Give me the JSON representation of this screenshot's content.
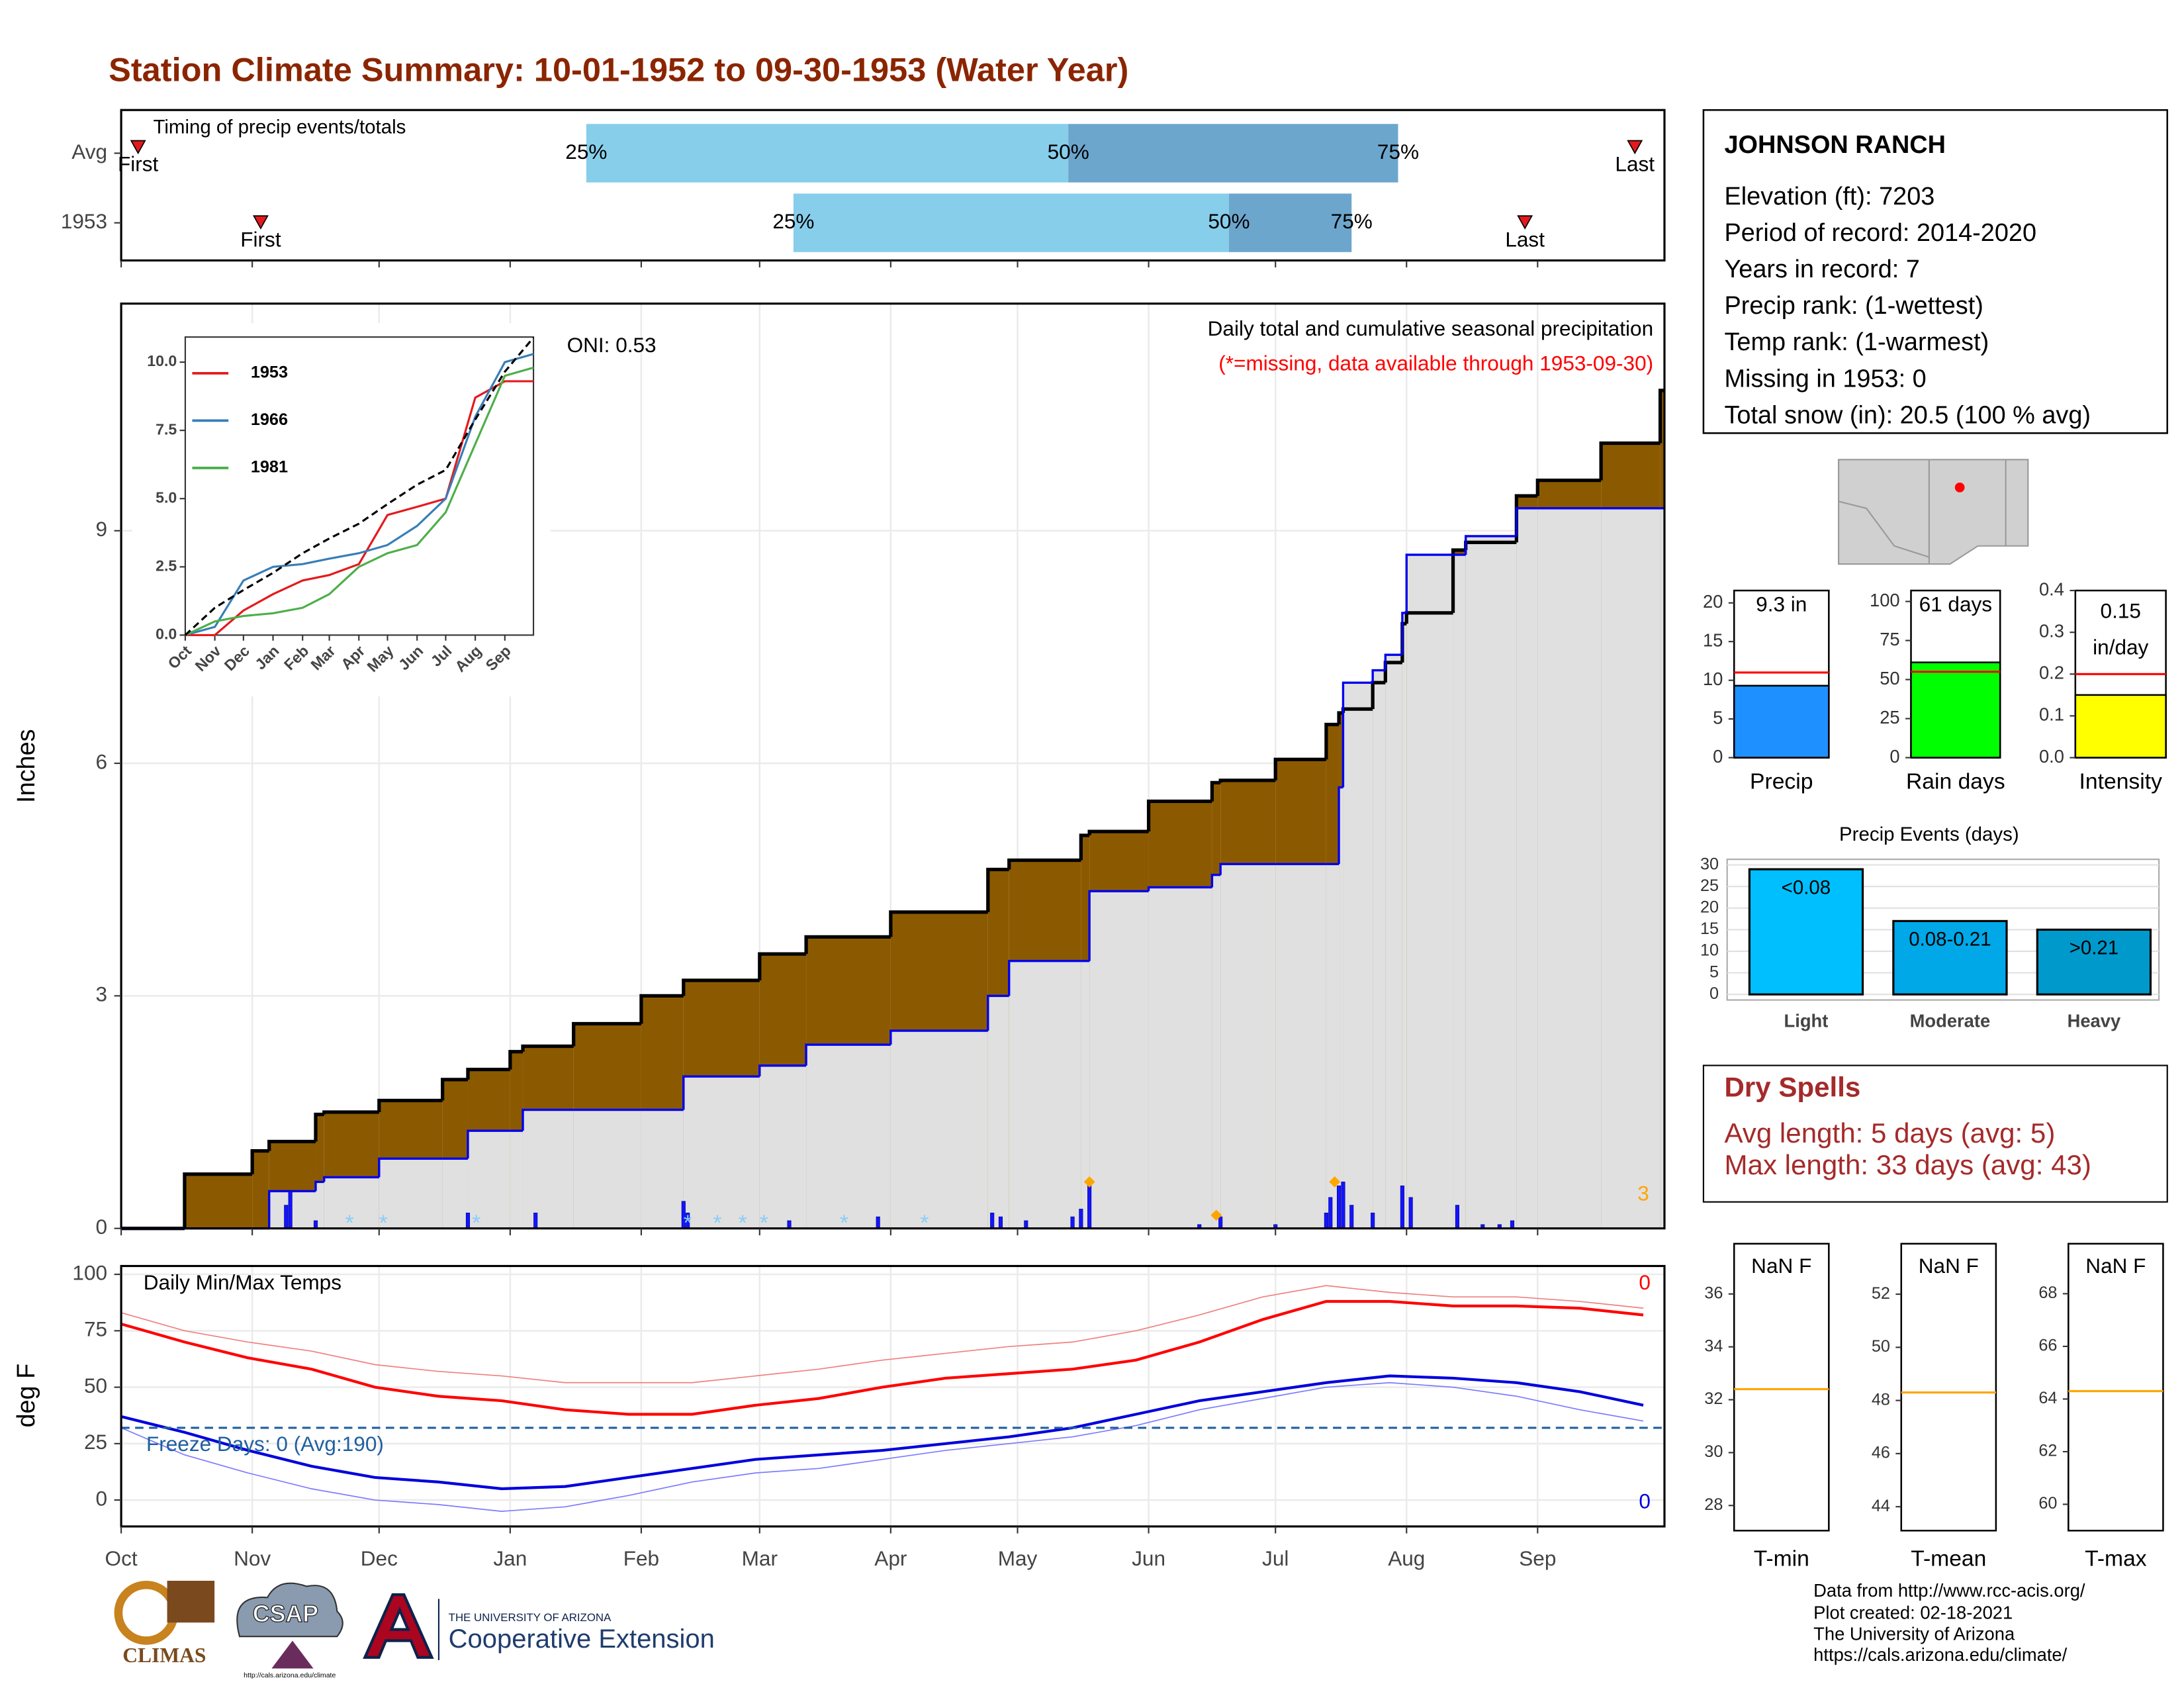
{
  "title": "Station Climate Summary: 10-01-1952 to 09-30-1953 (Water Year)",
  "station": {
    "name": "JOHNSON RANCH",
    "lines": [
      "Elevation (ft): 7203",
      "Period of record: 2014-2020",
      "Years in record: 7",
      "Precip rank:  (1-wettest)",
      "Temp rank:  (1-warmest)",
      "Missing in 1953: 0",
      "Total snow (in): 20.5 (100 % avg)"
    ]
  },
  "dry_spells": {
    "title": "Dry Spells",
    "lines": [
      "Avg length: 5 days (avg: 5)",
      "Max length: 33 days (avg: 43)"
    ]
  },
  "footer": {
    "lines": [
      "Data from http://www.rcc-acis.org/",
      "Plot created: 02-18-2021",
      "The University of Arizona",
      "https://cals.arizona.edu/climate/"
    ]
  },
  "logos": {
    "climas": "CLIMAS",
    "csap": "CSAP",
    "csap_url": "http://cals.arizona.edu/climate",
    "ua": "THE UNIVERSITY OF ARIZONA",
    "extension": "Cooperative Extension"
  },
  "chart_data": [
    {
      "type": "timing",
      "title": "Timing of precip events/totals",
      "categories": [
        "Avg",
        "1953"
      ],
      "xlim": [
        0,
        365
      ],
      "xticks": [
        0,
        31,
        61,
        92,
        123,
        151,
        182,
        212,
        243,
        273,
        304,
        335
      ],
      "rows": [
        {
          "first": 4,
          "q25": 110,
          "q50": 224,
          "q75": 302,
          "last": 358
        },
        {
          "first": 33,
          "q25": 159,
          "q50": 262,
          "q75": 291,
          "last": 332
        }
      ],
      "labels": {
        "first": "First",
        "q25": "25%",
        "q50": "50%",
        "q75": "75%",
        "last": "Last"
      },
      "colors": {
        "early": "#87ceeb",
        "late": "#6ca6cd",
        "marker": "#e31a1c"
      }
    },
    {
      "type": "cumulative",
      "y_label": "Inches",
      "oni": "ONI: 0.53",
      "subtitle": "Daily total and cumulative seasonal precipitation",
      "missing": "(*=missing, data available through 1953-09-30)",
      "count": 3,
      "xlim": [
        0,
        365
      ],
      "xticks": [
        0,
        31,
        61,
        92,
        123,
        151,
        182,
        212,
        243,
        273,
        304,
        335
      ],
      "ylim": [
        0,
        11.93
      ],
      "yticks": [
        0,
        3,
        6,
        9
      ],
      "grid": true,
      "x": [
        0,
        15,
        31,
        35,
        46,
        48,
        61,
        76,
        82,
        92,
        95,
        107,
        123,
        133,
        151,
        162,
        182,
        205,
        210,
        227,
        229,
        243,
        258,
        260,
        273,
        285,
        288,
        289,
        296,
        299,
        303,
        304,
        315,
        318,
        330,
        335,
        350,
        364
      ],
      "series": [
        {
          "color": "#000000",
          "values": [
            0,
            0.7,
            1.0,
            1.12,
            1.47,
            1.5,
            1.65,
            1.92,
            2.05,
            2.28,
            2.35,
            2.64,
            3.0,
            3.2,
            3.54,
            3.76,
            4.08,
            4.63,
            4.75,
            5.07,
            5.12,
            5.51,
            5.75,
            5.78,
            6.05,
            6.5,
            6.65,
            6.7,
            7.04,
            7.3,
            7.8,
            7.94,
            8.75,
            8.85,
            9.45,
            9.65,
            10.13,
            10.81
          ]
        },
        {
          "color": "#0000ee",
          "values": [
            0,
            0,
            0,
            0.48,
            0.6,
            0.66,
            0.9,
            0.9,
            1.26,
            1.26,
            1.53,
            1.53,
            1.53,
            1.96,
            2.1,
            2.37,
            2.55,
            3.0,
            3.45,
            3.45,
            4.35,
            4.4,
            4.56,
            4.7,
            4.7,
            4.7,
            5.69,
            7.04,
            7.2,
            7.4,
            7.94,
            8.69,
            8.69,
            8.93,
            9.29,
            9.29,
            9.29,
            9.29
          ]
        }
      ],
      "fills": {
        "deficit": "#8b5a00",
        "surplus": "#008000",
        "base": "#e0e0e0"
      },
      "daily": {
        "color": "#1414ff",
        "x": [
          39,
          40,
          46,
          82,
          98,
          133,
          134,
          158,
          179,
          206,
          208,
          214,
          225,
          227,
          229,
          255,
          260,
          273,
          285,
          286,
          288,
          289,
          291,
          296,
          303,
          305,
          316,
          322,
          326,
          329
        ],
        "values": [
          0.3,
          0.48,
          0.1,
          0.2,
          0.2,
          0.35,
          0.2,
          0.1,
          0.15,
          0.2,
          0.15,
          0.1,
          0.15,
          0.25,
          0.55,
          0.05,
          0.15,
          0.05,
          0.2,
          0.4,
          0.55,
          0.6,
          0.3,
          0.2,
          0.55,
          0.4,
          0.3,
          0.05,
          0.05,
          0.1
        ]
      },
      "peaks": {
        "color": "#ffa500",
        "x": [
          229,
          259,
          287
        ],
        "values": [
          0.6,
          0.17,
          0.6
        ]
      },
      "snow": {
        "label": "*",
        "color": "#87cefa",
        "x": [
          54,
          62,
          84,
          134,
          141,
          147,
          152,
          171,
          190
        ]
      }
    },
    {
      "type": "line",
      "legend": "top-left",
      "xlim": [
        0,
        365
      ],
      "ylim": [
        0,
        10.92
      ],
      "xticks": [
        {
          "value": 0,
          "label": "Oct"
        },
        {
          "value": 31,
          "label": "Nov"
        },
        {
          "value": 61,
          "label": "Dec"
        },
        {
          "value": 92,
          "label": "Jan"
        },
        {
          "value": 123,
          "label": "Feb"
        },
        {
          "value": 151,
          "label": "Mar"
        },
        {
          "value": 182,
          "label": "Apr"
        },
        {
          "value": 212,
          "label": "May"
        },
        {
          "value": 243,
          "label": "Jun"
        },
        {
          "value": 273,
          "label": "Jul"
        },
        {
          "value": 304,
          "label": "Aug"
        },
        {
          "value": 335,
          "label": "Sep"
        }
      ],
      "yticks": [
        {
          "value": 0,
          "label": "0.0"
        },
        {
          "value": 2.5,
          "label": "2.5"
        },
        {
          "value": 5,
          "label": "5.0"
        },
        {
          "value": 7.5,
          "label": "7.5"
        },
        {
          "value": 10,
          "label": "10.0"
        }
      ],
      "x": [
        0,
        31,
        61,
        92,
        123,
        151,
        182,
        212,
        243,
        273,
        304,
        335,
        365
      ],
      "series": [
        {
          "name": "1953",
          "color": "#e41a1c",
          "values": [
            0,
            0,
            0.9,
            1.5,
            2.0,
            2.2,
            2.6,
            4.4,
            4.7,
            5.0,
            8.7,
            9.3,
            9.3
          ]
        },
        {
          "name": "1966",
          "color": "#377eb8",
          "values": [
            0,
            0.3,
            2.0,
            2.5,
            2.6,
            2.8,
            3.0,
            3.3,
            4.0,
            5.0,
            8.0,
            10.0,
            10.3
          ]
        },
        {
          "name": "1981",
          "color": "#4daf4a",
          "values": [
            0,
            0.5,
            0.7,
            0.8,
            1.0,
            1.5,
            2.5,
            3.0,
            3.3,
            4.5,
            7.0,
            9.5,
            9.8
          ]
        }
      ],
      "average": {
        "color": "#000000",
        "values": [
          0,
          1.0,
          1.65,
          2.28,
          3.0,
          3.54,
          4.08,
          4.8,
          5.51,
          6.05,
          7.9,
          9.65,
          10.9
        ]
      }
    },
    {
      "type": "temps",
      "title": "Daily Min/Max Temps",
      "y_label": "deg F",
      "xlim": [
        0,
        365
      ],
      "ylim": [
        -11.7,
        103.7
      ],
      "yticks": [
        0,
        25,
        50,
        75,
        100
      ],
      "grid": true,
      "xticks": [
        {
          "value": 0,
          "label": "Oct"
        },
        {
          "value": 31,
          "label": "Nov"
        },
        {
          "value": 61,
          "label": "Dec"
        },
        {
          "value": 92,
          "label": "Jan"
        },
        {
          "value": 123,
          "label": "Feb"
        },
        {
          "value": 151,
          "label": "Mar"
        },
        {
          "value": 182,
          "label": "Apr"
        },
        {
          "value": 212,
          "label": "May"
        },
        {
          "value": 243,
          "label": "Jun"
        },
        {
          "value": 273,
          "label": "Jul"
        },
        {
          "value": 304,
          "label": "Aug"
        },
        {
          "value": 335,
          "label": "Sep"
        }
      ],
      "x": [
        0,
        15,
        30,
        45,
        60,
        75,
        90,
        105,
        120,
        135,
        150,
        165,
        180,
        195,
        210,
        225,
        240,
        255,
        270,
        285,
        300,
        315,
        330,
        345,
        360
      ],
      "series": [
        {
          "color": "#f08080",
          "width": 0.8,
          "values": [
            83,
            75,
            70,
            66,
            60,
            57,
            55,
            52,
            52,
            52,
            55,
            58,
            62,
            65,
            68,
            70,
            75,
            82,
            90,
            95,
            92,
            90,
            90,
            88,
            85
          ]
        },
        {
          "color": "#7b7bff",
          "width": 0.8,
          "values": [
            32,
            20,
            12,
            5,
            0,
            -2,
            -5,
            -3,
            2,
            8,
            12,
            14,
            18,
            22,
            25,
            28,
            33,
            40,
            45,
            50,
            52,
            50,
            46,
            40,
            35
          ]
        },
        {
          "color": "#ff0000",
          "width": 2,
          "values": [
            78,
            70,
            63,
            58,
            50,
            46,
            44,
            40,
            38,
            38,
            42,
            45,
            50,
            54,
            56,
            58,
            62,
            70,
            80,
            88,
            88,
            86,
            86,
            85,
            82
          ]
        },
        {
          "color": "#0000dd",
          "width": 2,
          "values": [
            37,
            30,
            22,
            15,
            10,
            8,
            5,
            6,
            10,
            14,
            18,
            20,
            22,
            25,
            28,
            32,
            38,
            44,
            48,
            52,
            55,
            54,
            52,
            48,
            42
          ]
        }
      ],
      "freeze": {
        "value": 32,
        "color": "#1f5fa0",
        "label": "Freeze Days: 0 (Avg:190)"
      },
      "max_count": 0,
      "min_count": 0
    },
    {
      "type": "gauge",
      "label": "Precip",
      "value": 9.3,
      "value_label": "9.3 in",
      "avg": 11,
      "color": "#1e90ff",
      "ylim": [
        0,
        21.6
      ],
      "yticks": [
        0,
        5,
        10,
        15,
        20
      ]
    },
    {
      "type": "gauge",
      "label": "Rain days",
      "value": 61,
      "value_label": "61 days",
      "avg": 55,
      "color": "#00ff00",
      "ylim": [
        0,
        107
      ],
      "yticks": [
        0,
        25,
        50,
        75,
        100
      ]
    },
    {
      "type": "gauge",
      "label": "Intensity",
      "value": 0.15,
      "value_label": "0.15 in/day",
      "avg": 0.2,
      "color": "#ffff00",
      "ylim": [
        0,
        0.4
      ],
      "yticks": [
        {
          "value": 0,
          "label": "0.0"
        },
        {
          "value": 0.1,
          "label": "0.1"
        },
        {
          "value": 0.2,
          "label": "0.2"
        },
        {
          "value": 0.3,
          "label": "0.3"
        },
        {
          "value": 0.4,
          "label": "0.4"
        }
      ]
    },
    {
      "type": "bar",
      "title": "Precip Events (days)",
      "categories": [
        "Light",
        "Moderate",
        "Heavy"
      ],
      "values": [
        29,
        17,
        15
      ],
      "ranges": [
        "<0.08",
        "0.08-0.21",
        ">0.21"
      ],
      "colors": [
        "#00bfff",
        "#00a8e8",
        "#0099cc"
      ],
      "ylim": [
        0,
        31.3
      ],
      "yticks": [
        0,
        5,
        10,
        15,
        20,
        25,
        30
      ],
      "grid": true
    },
    {
      "type": "temp_gauge",
      "label": "T-min",
      "value": null,
      "value_label": "NaN F",
      "avg": 32.4,
      "avg_color": "#ffa500",
      "ylim": [
        27.05,
        37.9
      ],
      "yticks": [
        28,
        30,
        32,
        34,
        36
      ]
    },
    {
      "type": "temp_gauge",
      "label": "T-mean",
      "value": null,
      "value_label": "NaN F",
      "avg": 48.3,
      "avg_color": "#ffa500",
      "ylim": [
        43.1,
        53.9
      ],
      "yticks": [
        44,
        46,
        48,
        50,
        52
      ]
    },
    {
      "type": "temp_gauge",
      "label": "T-max",
      "value": null,
      "value_label": "NaN F",
      "avg": 64.3,
      "avg_color": "#ffa500",
      "ylim": [
        59.0,
        69.9
      ],
      "yticks": [
        60,
        62,
        64,
        66,
        68
      ]
    }
  ]
}
